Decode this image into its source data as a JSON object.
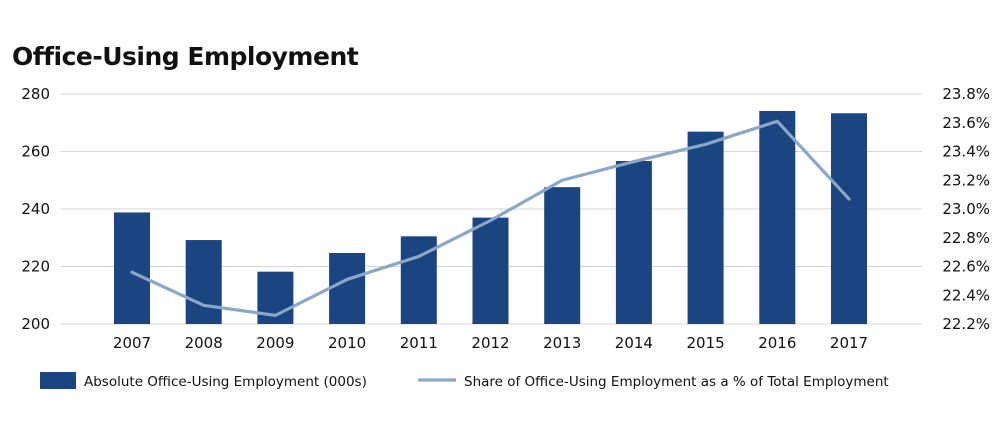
{
  "chart_data": {
    "type": "bar",
    "title": "Office-Using Employment",
    "categories": [
      "2007",
      "2008",
      "2009",
      "2010",
      "2011",
      "2012",
      "2013",
      "2014",
      "2015",
      "2016",
      "2017"
    ],
    "series": [
      {
        "name": "Absolute Office-Using Employment (000s)",
        "type": "bar",
        "axis": "left",
        "color": "#1a4580",
        "values": [
          238.8,
          229.2,
          218.2,
          224.7,
          230.5,
          237.0,
          247.6,
          256.7,
          266.9,
          274.1,
          273.3
        ]
      },
      {
        "name": "Share of Office-Using Employment as a % of Total Employment",
        "type": "line",
        "axis": "right",
        "color": "#8aa6c8",
        "values": [
          22.56,
          22.33,
          22.26,
          22.51,
          22.67,
          22.92,
          23.2,
          23.33,
          23.45,
          23.61,
          23.07
        ]
      }
    ],
    "y_left": {
      "min": 200,
      "max": 280,
      "ticks": [
        "200",
        "220",
        "240",
        "260",
        "280"
      ]
    },
    "y_right": {
      "min": 22.2,
      "max": 23.8,
      "ticks": [
        "22.2%",
        "22.4%",
        "22.6%",
        "22.8%",
        "23.0%",
        "23.2%",
        "23.4%",
        "23.6%",
        "23.8%"
      ]
    },
    "grid": true,
    "legend": "bottom-left"
  }
}
